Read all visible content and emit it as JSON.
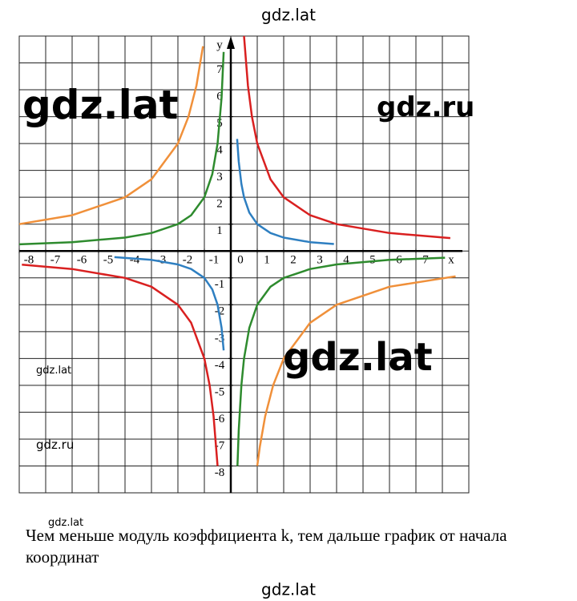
{
  "header": {
    "title": "gdz.lat"
  },
  "chart_data": {
    "type": "line",
    "x_label": "x",
    "y_label": "y",
    "xlim": [
      -8,
      9
    ],
    "ylim": [
      -9,
      8
    ],
    "xticks": [
      -8,
      -7,
      -6,
      -5,
      -4,
      -3,
      -2,
      -1,
      0,
      1,
      2,
      3,
      4,
      5,
      6,
      7
    ],
    "yticks": [
      -8,
      -7,
      -6,
      -5,
      -4,
      -3,
      -2,
      -1,
      1,
      2,
      3,
      4,
      5,
      6,
      7
    ],
    "grid": true,
    "series": [
      {
        "color": "#2e7fc1",
        "x": [
          -4.4,
          -3,
          -2,
          -1.5,
          -1,
          -0.7,
          -0.5,
          -0.35,
          -0.27,
          null,
          0.24,
          0.3,
          0.4,
          0.5,
          0.7,
          1,
          1.5,
          2,
          3,
          3.9
        ],
        "values": [
          -0.23,
          -0.33,
          -0.5,
          -0.67,
          -1,
          -1.43,
          -2,
          -2.86,
          -3.7,
          null,
          4.17,
          3.33,
          2.5,
          2,
          1.43,
          1,
          0.67,
          0.5,
          0.33,
          0.26
        ]
      },
      {
        "color": "#d92020",
        "x": [
          -7.9,
          -6,
          -4,
          -3,
          -2,
          -1.5,
          -1,
          -0.8,
          -0.65,
          -0.5,
          null,
          0.5,
          0.65,
          0.8,
          1,
          1.5,
          2,
          3,
          4,
          6,
          8.3
        ],
        "values": [
          -0.51,
          -0.67,
          -1,
          -1.33,
          -2,
          -2.67,
          -4,
          -5,
          -6.15,
          -8,
          null,
          8,
          6.15,
          5,
          4,
          2.67,
          2,
          1.33,
          1,
          0.67,
          0.48
        ]
      },
      {
        "color": "#2e8b2e",
        "x": [
          -8,
          -6,
          -4,
          -3,
          -2,
          -1.5,
          -1,
          -0.7,
          -0.5,
          -0.35,
          -0.27,
          null,
          0.25,
          0.3,
          0.4,
          0.5,
          0.7,
          1,
          1.5,
          2,
          3,
          4,
          6,
          8.1
        ],
        "values": [
          0.25,
          0.33,
          0.5,
          0.67,
          1,
          1.33,
          2,
          2.86,
          4,
          5.71,
          7.41,
          null,
          -8,
          -6.67,
          -5,
          -4,
          -2.86,
          -2,
          -1.33,
          -1,
          -0.67,
          -0.5,
          -0.33,
          -0.25
        ]
      },
      {
        "color": "#f0903a",
        "x": [
          -8,
          -6,
          -4,
          -3,
          -2,
          -1.6,
          -1.3,
          -1.05,
          null,
          1,
          1.1,
          1.3,
          1.6,
          2,
          3,
          4,
          6,
          8.5
        ],
        "values": [
          1,
          1.33,
          2,
          2.67,
          4,
          5,
          6.15,
          7.62,
          null,
          -8,
          -7.27,
          -6.15,
          -5,
          -4,
          -2.67,
          -2,
          -1.33,
          -0.94
        ]
      }
    ]
  },
  "watermarks": [
    "gdz.lat",
    "gdz.ru",
    "gdz.lat",
    "gdz.lat",
    "gdz.ru",
    "gdz.lat"
  ],
  "caption": "Чем меньше модуль коэффициента k, тем дальше график от начала координат",
  "footer": {
    "text": "gdz.lat"
  }
}
